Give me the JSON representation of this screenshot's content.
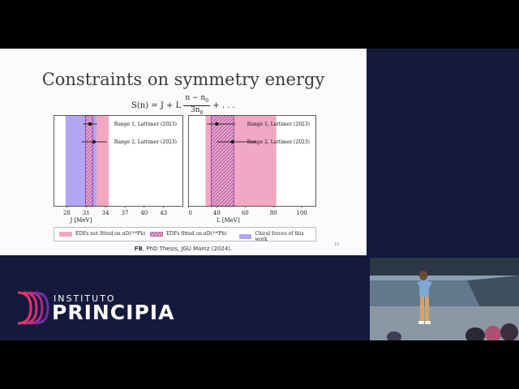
{
  "slide": {
    "title": "Constraints on symmetry energy",
    "formula": {
      "lhs": "S(n) = J + L",
      "numerator": "n − n",
      "numerator_sub": "0",
      "denominator": "3n",
      "denominator_sub": "0",
      "tail": "+ . . ."
    },
    "page_number": "10",
    "citation_bold": "FB",
    "citation_rest": ", PhD Thesis, JGU Mainz (2024)."
  },
  "chart_data": [
    {
      "type": "interval",
      "xlabel": "J [MeV]",
      "xlim": [
        26,
        46
      ],
      "ticks": [
        28,
        31,
        34,
        37,
        40,
        43
      ],
      "bands": [
        {
          "name": "Chiral forces of this work",
          "from": 27.8,
          "to": 32.6,
          "color": "#b0a6f4"
        },
        {
          "name": "EDFs not fitted on αD(208Pb)",
          "from": 32.6,
          "to": 34.5,
          "color": "#f2a7c4"
        },
        {
          "name": "EDFs fitted on αD(208Pb)",
          "from": 30.9,
          "to": 32.0,
          "color": "#7c3aa0",
          "hatched": true
        }
      ],
      "points": [
        {
          "label": "Range 1, Lattimer (2023)",
          "value": 31.6,
          "err_low": 30.5,
          "err_high": 32.7
        },
        {
          "label": "Range 2, Lattimer (2023)",
          "value": 32.2,
          "err_low": 30.3,
          "err_high": 34.2
        }
      ]
    },
    {
      "type": "interval",
      "xlabel": "L [MeV]",
      "xlim": [
        20,
        110
      ],
      "ticks": [
        20,
        40,
        60,
        80,
        100
      ],
      "bands": [
        {
          "name": "EDFs not fitted on αD(208Pb)",
          "from": 32,
          "to": 82,
          "color": "#f2a7c4"
        },
        {
          "name": "Chiral forces of this work",
          "from": 45,
          "to": 52,
          "color": "#b0a6f4"
        },
        {
          "name": "EDFs fitted on αD(208Pb)",
          "from": 36,
          "to": 52,
          "color": "#7c3aa0",
          "hatched": true
        }
      ],
      "points": [
        {
          "label": "Range 1, Lattimer (2023)",
          "value": 40,
          "err_low": 33,
          "err_high": 53
        },
        {
          "label": "Range 2, Lattimer (2023)",
          "value": 51,
          "err_low": 40,
          "err_high": 68
        }
      ]
    }
  ],
  "legend": {
    "items": [
      {
        "text": "EDFs not fitted on αD(²⁰⁸Pb)",
        "color": "#f2a7c4",
        "hatched": false
      },
      {
        "text": "EDFs fitted on αD(²⁰⁸Pb)",
        "color": "#7c3aa0",
        "hatched": true
      },
      {
        "text": "Chiral forces of this work",
        "color": "#b0a6f4",
        "hatched": false
      }
    ]
  },
  "branding": {
    "top_word": "INSTITUTO",
    "main_word": "PRINCIPIA",
    "colors": [
      "#e8346b",
      "#b72a86",
      "#6a2fa6"
    ]
  },
  "camera": {
    "description_none": ""
  }
}
